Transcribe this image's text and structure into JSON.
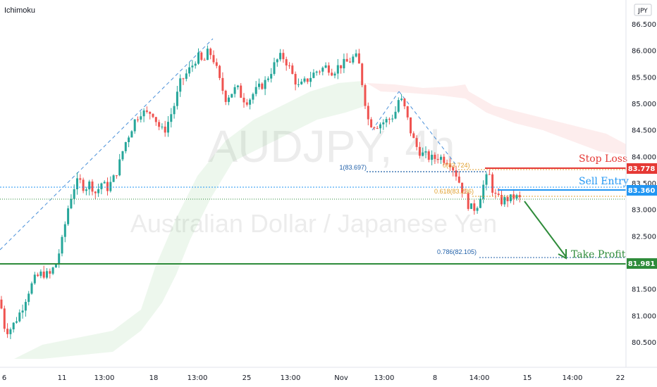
{
  "indicator_label": "Ichimoku",
  "currency_label": "JPY",
  "watermark": {
    "symbol": "AUDJPY, 4h",
    "name": "Australian Dollar / Japanese Yen"
  },
  "colors": {
    "up": "#26a69a",
    "down": "#ef5350",
    "support": "#2e8b3a",
    "stop": "#e53935",
    "entry": "#2196f3",
    "fib": "#e0a030",
    "fib_label": "#1f5fa8"
  },
  "annotations": {
    "stop_loss": "Stop Loss",
    "sell_entry": "Sell Entry",
    "take_profit": "Take Profit",
    "fib_1": "1(83.697)",
    "fib_0": "0(83.724)",
    "fib_0618": "0.618(83.236)",
    "fib_0786": "0.786(82.105)"
  },
  "chart_data": {
    "type": "candlestick",
    "title": "",
    "ylim": [
      80.0,
      86.9
    ],
    "y_ticks": [
      "86.500",
      "86.000",
      "85.500",
      "85.000",
      "84.500",
      "84.000",
      "83.500",
      "83.000",
      "82.500",
      "82.000",
      "81.500",
      "81.000",
      "80.500"
    ],
    "x_ticks": [
      "6",
      "11",
      "13:00",
      "18",
      "13:00",
      "25",
      "13:00",
      "Nov",
      "13:00",
      "8",
      "14:00",
      "15",
      "14:00",
      "22"
    ],
    "price_levels": [
      {
        "name": "stop",
        "value": 83.778,
        "label": "83.778",
        "color": "#e53935"
      },
      {
        "name": "entry",
        "value": 83.36,
        "label": "83.360",
        "color": "#2196f3"
      },
      {
        "name": "support",
        "value": 81.981,
        "label": "81.981",
        "color": "#2e8b3a"
      }
    ],
    "anchors": [
      [
        0,
        81.3
      ],
      [
        6,
        80.8
      ],
      [
        12,
        80.7
      ],
      [
        20,
        80.85
      ],
      [
        30,
        81.1
      ],
      [
        40,
        81.45
      ],
      [
        50,
        81.7
      ],
      [
        60,
        81.8
      ],
      [
        70,
        81.75
      ],
      [
        80,
        82.0
      ],
      [
        88,
        82.4
      ],
      [
        96,
        83.0
      ],
      [
        104,
        83.4
      ],
      [
        112,
        83.55
      ],
      [
        120,
        83.4
      ],
      [
        128,
        83.5
      ],
      [
        136,
        83.3
      ],
      [
        144,
        83.5
      ],
      [
        152,
        83.4
      ],
      [
        160,
        83.55
      ],
      [
        168,
        83.8
      ],
      [
        176,
        84.2
      ],
      [
        184,
        84.45
      ],
      [
        192,
        84.7
      ],
      [
        200,
        84.85
      ],
      [
        208,
        84.8
      ],
      [
        216,
        84.85
      ],
      [
        224,
        84.6
      ],
      [
        232,
        84.45
      ],
      [
        240,
        84.7
      ],
      [
        248,
        85.0
      ],
      [
        256,
        85.4
      ],
      [
        264,
        85.55
      ],
      [
        272,
        85.7
      ],
      [
        280,
        85.9
      ],
      [
        288,
        85.75
      ],
      [
        296,
        86.0
      ],
      [
        304,
        85.8
      ],
      [
        312,
        85.4
      ],
      [
        320,
        85.1
      ],
      [
        328,
        85.2
      ],
      [
        336,
        85.3
      ],
      [
        344,
        85.1
      ],
      [
        352,
        85.05
      ],
      [
        360,
        85.2
      ],
      [
        368,
        85.3
      ],
      [
        376,
        85.4
      ],
      [
        384,
        85.6
      ],
      [
        392,
        85.8
      ],
      [
        400,
        85.9
      ],
      [
        408,
        85.75
      ],
      [
        416,
        85.5
      ],
      [
        424,
        85.3
      ],
      [
        432,
        85.4
      ],
      [
        440,
        85.5
      ],
      [
        448,
        85.6
      ],
      [
        456,
        85.65
      ],
      [
        464,
        85.7
      ],
      [
        472,
        85.6
      ],
      [
        480,
        85.7
      ],
      [
        488,
        85.75
      ],
      [
        496,
        85.8
      ],
      [
        504,
        85.9
      ],
      [
        510,
        85.7
      ],
      [
        516,
        85.2
      ],
      [
        522,
        84.7
      ],
      [
        528,
        84.6
      ],
      [
        536,
        84.6
      ],
      [
        544,
        84.65
      ],
      [
        552,
        84.7
      ],
      [
        560,
        84.8
      ],
      [
        566,
        85.1
      ],
      [
        572,
        85.0
      ],
      [
        578,
        84.7
      ],
      [
        584,
        84.4
      ],
      [
        590,
        84.2
      ],
      [
        598,
        84.05
      ],
      [
        606,
        84.0
      ],
      [
        614,
        83.95
      ],
      [
        622,
        84.0
      ],
      [
        630,
        83.95
      ],
      [
        638,
        83.9
      ],
      [
        646,
        83.7
      ],
      [
        652,
        83.5
      ],
      [
        658,
        83.3
      ],
      [
        664,
        83.1
      ],
      [
        670,
        83.0
      ],
      [
        676,
        83.05
      ],
      [
        682,
        83.3
      ],
      [
        688,
        83.55
      ],
      [
        694,
        83.65
      ],
      [
        700,
        83.3
      ],
      [
        706,
        83.2
      ],
      [
        712,
        83.15
      ],
      [
        718,
        83.2
      ],
      [
        724,
        83.2
      ],
      [
        730,
        83.25
      ],
      [
        736,
        83.2
      ],
      [
        740,
        83.18
      ]
    ]
  }
}
